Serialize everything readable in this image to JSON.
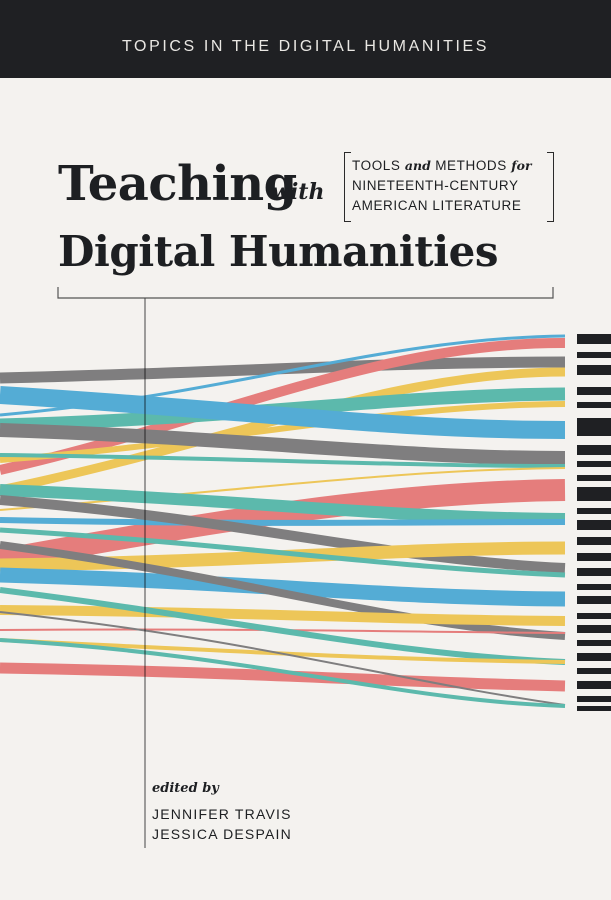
{
  "series": {
    "title": "TOPICS IN THE DIGITAL HUMANITIES"
  },
  "title": {
    "line1_main": "Teaching",
    "line1_with": "with",
    "line2": "Digital Humanities"
  },
  "subtitle": {
    "line1_a": "TOOLS",
    "line1_and": "and",
    "line1_b": "METHODS",
    "line1_for": "for",
    "line2": "NINETEENTH-CENTURY",
    "line3": "AMERICAN LITERATURE"
  },
  "editors": {
    "label": "edited by",
    "names": [
      "JENNIFER TRAVIS",
      "JESSICA DESPAIN"
    ]
  },
  "colors": {
    "background": "#f4f2ef",
    "band": "#1f2023",
    "blue": "#3aa8e0",
    "red": "#ee6e6e",
    "teal": "#44b9ac",
    "yellow": "#f7c942",
    "gray": "#6f6f72"
  }
}
